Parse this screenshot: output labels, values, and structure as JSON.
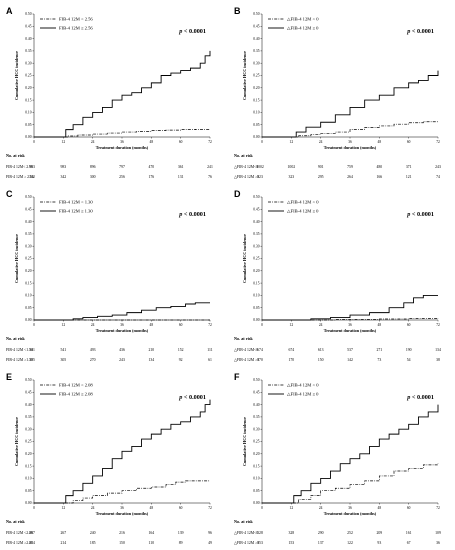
{
  "chart_data": [
    {
      "panel": "A",
      "type": "line",
      "ylabel": "Cumulative HCC incidence",
      "xlabel": "Treatment duration (months)",
      "ylim": [
        0,
        0.5
      ],
      "xlim": [
        0,
        72
      ],
      "x_ticks": [
        "0",
        "12",
        "24",
        "36",
        "48",
        "60",
        "72"
      ],
      "y_ticks": [
        "0.00",
        "0.05",
        "0.10",
        "0.15",
        "0.20",
        "0.25",
        "0.30",
        "0.35",
        "0.40",
        "0.45",
        "0.50"
      ],
      "grid": false,
      "legend_position": "top-left",
      "p_value_label": "p < 0.0001",
      "series": [
        {
          "name": "FIB-4 12M < 2.56",
          "style": "dashdot",
          "x": [
            0,
            12,
            14,
            18,
            24,
            30,
            36,
            42,
            48,
            54,
            60,
            66,
            72
          ],
          "y": [
            0,
            0,
            0.004,
            0.008,
            0.012,
            0.016,
            0.02,
            0.023,
            0.026,
            0.028,
            0.03,
            0.031,
            0.031
          ]
        },
        {
          "name": "FIB-4 12M ≥ 2.56",
          "style": "solid",
          "x": [
            0,
            11,
            13,
            16,
            20,
            24,
            28,
            32,
            36,
            40,
            44,
            48,
            52,
            56,
            60,
            64,
            68,
            70,
            72
          ],
          "y": [
            0,
            0,
            0.03,
            0.05,
            0.08,
            0.1,
            0.12,
            0.15,
            0.17,
            0.18,
            0.2,
            0.22,
            0.25,
            0.26,
            0.27,
            0.28,
            0.3,
            0.33,
            0.35
          ]
        }
      ],
      "risk_table": {
        "title": "No. at risk",
        "rows": [
          {
            "label": "FIB-4 12M< 2.56",
            "values": [
              "983",
              "983",
              "896",
              "797",
              "470",
              "361",
              "241"
            ]
          },
          {
            "label": "FIB-4 12M ≥ 2.56",
            "values": [
              "342",
              "342",
              "300",
              "256",
              "176",
              "131",
              "76"
            ]
          }
        ]
      }
    },
    {
      "panel": "B",
      "type": "line",
      "ylabel": "Cumulative HCC incidence",
      "xlabel": "Treatment duration (months)",
      "ylim": [
        0,
        0.5
      ],
      "xlim": [
        0,
        72
      ],
      "x_ticks": [
        "0",
        "12",
        "24",
        "36",
        "48",
        "60",
        "72"
      ],
      "y_ticks": [
        "0.00",
        "0.05",
        "0.10",
        "0.15",
        "0.20",
        "0.25",
        "0.30",
        "0.35",
        "0.40",
        "0.45",
        "0.50"
      ],
      "grid": false,
      "legend_position": "top-left",
      "p_value_label": "p < 0.0001",
      "series": [
        {
          "name": "△FIB-4 12M < 0",
          "style": "dashdot",
          "x": [
            0,
            12,
            15,
            20,
            24,
            30,
            36,
            42,
            48,
            54,
            60,
            66,
            72
          ],
          "y": [
            0,
            0,
            0.005,
            0.01,
            0.015,
            0.02,
            0.03,
            0.038,
            0.045,
            0.052,
            0.058,
            0.062,
            0.065
          ]
        },
        {
          "name": "△FIB-4 12M ≥ 0",
          "style": "solid",
          "x": [
            0,
            11,
            14,
            18,
            24,
            30,
            36,
            42,
            48,
            54,
            60,
            64,
            68,
            72
          ],
          "y": [
            0,
            0,
            0.02,
            0.04,
            0.06,
            0.09,
            0.12,
            0.15,
            0.17,
            0.2,
            0.22,
            0.23,
            0.25,
            0.27
          ]
        }
      ],
      "risk_table": {
        "title": "No. at risk",
        "rows": [
          {
            "label": "△FIB-4 12M<0",
            "values": [
              "1002",
              "1002",
              "901",
              "759",
              "480",
              "371",
              "243"
            ]
          },
          {
            "label": "△FIB-4 12M ≥0",
            "values": [
              "323",
              "323",
              "295",
              "264",
              "166",
              "121",
              "74"
            ]
          }
        ]
      }
    },
    {
      "panel": "C",
      "type": "line",
      "ylabel": "Cumulative HCC incidence",
      "xlabel": "Treatment duration (months)",
      "ylim": [
        0,
        0.5
      ],
      "xlim": [
        0,
        72
      ],
      "x_ticks": [
        "0",
        "12",
        "24",
        "36",
        "48",
        "60",
        "72"
      ],
      "y_ticks": [
        "0.00",
        "0.05",
        "0.10",
        "0.15",
        "0.20",
        "0.25",
        "0.30",
        "0.35",
        "0.40",
        "0.45",
        "0.50"
      ],
      "grid": false,
      "legend_position": "top-left",
      "p_value_label": "p < 0.0001",
      "series": [
        {
          "name": "FIB-4 12M < 1.30",
          "style": "dashdot",
          "x": [
            0,
            72
          ],
          "y": [
            0,
            0
          ]
        },
        {
          "name": "FIB-4 12M ≥ 1.30",
          "style": "solid",
          "x": [
            0,
            12,
            16,
            20,
            26,
            32,
            38,
            44,
            50,
            56,
            62,
            66,
            72
          ],
          "y": [
            0,
            0,
            0.005,
            0.01,
            0.015,
            0.02,
            0.03,
            0.04,
            0.05,
            0.055,
            0.065,
            0.07,
            0.07
          ]
        }
      ],
      "risk_table": {
        "title": "No. at risk",
        "rows": [
          {
            "label": "FIB-4 12M <1.30",
            "values": [
              "541",
              "541",
              "493",
              "436",
              "210",
              "152",
              "111"
            ]
          },
          {
            "label": "FIB-4 12M ≥1.30",
            "values": [
              "305",
              "305",
              "270",
              "243",
              "134",
              "92",
              "61"
            ]
          }
        ]
      }
    },
    {
      "panel": "D",
      "type": "line",
      "ylabel": "Cumulative HCC incidence",
      "xlabel": "Treatment duration (months)",
      "ylim": [
        0,
        0.5
      ],
      "xlim": [
        0,
        72
      ],
      "x_ticks": [
        "0",
        "12",
        "24",
        "36",
        "48",
        "60",
        "72"
      ],
      "y_ticks": [
        "0.00",
        "0.05",
        "0.10",
        "0.15",
        "0.20",
        "0.25",
        "0.30",
        "0.35",
        "0.40",
        "0.45",
        "0.50"
      ],
      "grid": false,
      "legend_position": "top-left",
      "p_value_label": "p < 0.0001",
      "series": [
        {
          "name": "△FIB-4 12M < 0",
          "style": "dashdot",
          "x": [
            0,
            12,
            30,
            48,
            60,
            72
          ],
          "y": [
            0,
            0,
            0.002,
            0.004,
            0.006,
            0.008
          ]
        },
        {
          "name": "△FIB-4 12M ≥ 0",
          "style": "solid",
          "x": [
            0,
            12,
            20,
            28,
            36,
            44,
            52,
            58,
            62,
            66,
            72
          ],
          "y": [
            0,
            0,
            0.005,
            0.01,
            0.02,
            0.03,
            0.05,
            0.07,
            0.09,
            0.1,
            0.1
          ]
        }
      ],
      "risk_table": {
        "title": "No. at risk",
        "rows": [
          {
            "label": "△FIB-4 12M<0",
            "values": [
              "674",
              "674",
              "613",
              "537",
              "271",
              "190",
              "134"
            ]
          },
          {
            "label": "△FIB-4 12M ≥0",
            "values": [
              "170",
              "170",
              "150",
              "142",
              "73",
              "54",
              "38"
            ]
          }
        ]
      }
    },
    {
      "panel": "E",
      "type": "line",
      "ylabel": "Cumulative HCC incidence",
      "xlabel": "Treatment duration (months)",
      "ylim": [
        0,
        0.5
      ],
      "xlim": [
        0,
        72
      ],
      "x_ticks": [
        "0",
        "12",
        "24",
        "36",
        "48",
        "60",
        "72"
      ],
      "y_ticks": [
        "0.00",
        "0.05",
        "0.10",
        "0.15",
        "0.20",
        "0.25",
        "0.30",
        "0.35",
        "0.40",
        "0.45",
        "0.50"
      ],
      "grid": false,
      "legend_position": "top-left",
      "p_value_label": "p < 0.0001",
      "series": [
        {
          "name": "FIB-4 12M < 2.08",
          "style": "dashdot",
          "x": [
            0,
            12,
            16,
            20,
            24,
            30,
            36,
            42,
            48,
            54,
            58,
            62,
            66,
            72
          ],
          "y": [
            0,
            0,
            0.01,
            0.02,
            0.03,
            0.04,
            0.05,
            0.06,
            0.065,
            0.075,
            0.085,
            0.09,
            0.09,
            0.09
          ]
        },
        {
          "name": "FIB-4 12M ≥ 2.08",
          "style": "solid",
          "x": [
            0,
            11,
            13,
            16,
            20,
            24,
            28,
            32,
            36,
            40,
            44,
            48,
            52,
            56,
            60,
            64,
            68,
            70,
            72
          ],
          "y": [
            0,
            0,
            0.03,
            0.05,
            0.08,
            0.11,
            0.14,
            0.18,
            0.21,
            0.23,
            0.26,
            0.28,
            0.3,
            0.32,
            0.33,
            0.35,
            0.37,
            0.4,
            0.42
          ]
        }
      ],
      "risk_table": {
        "title": "No. at risk",
        "rows": [
          {
            "label": "FIB-4 12M <2.08",
            "values": [
              "267",
              "267",
              "240",
              "216",
              "164",
              "139",
              "96"
            ]
          },
          {
            "label": "FIB-4 12M ≥2.08",
            "values": [
              "214",
              "214",
              "185",
              "150",
              "110",
              "89",
              "49"
            ]
          }
        ]
      }
    },
    {
      "panel": "F",
      "type": "line",
      "ylabel": "Cumulative HCC incidence",
      "xlabel": "Treatment duration (months)",
      "ylim": [
        0,
        0.5
      ],
      "xlim": [
        0,
        72
      ],
      "x_ticks": [
        "0",
        "12",
        "24",
        "36",
        "48",
        "60",
        "72"
      ],
      "y_ticks": [
        "0.00",
        "0.05",
        "0.10",
        "0.15",
        "0.20",
        "0.25",
        "0.30",
        "0.35",
        "0.40",
        "0.45",
        "0.50"
      ],
      "grid": false,
      "legend_position": "top-left",
      "p_value_label": "p < 0.0001",
      "series": [
        {
          "name": "△FIB-4 12M < 0",
          "style": "dashdot",
          "x": [
            0,
            12,
            15,
            20,
            24,
            30,
            36,
            42,
            48,
            54,
            60,
            66,
            72
          ],
          "y": [
            0,
            0,
            0.015,
            0.03,
            0.05,
            0.06,
            0.075,
            0.09,
            0.11,
            0.13,
            0.14,
            0.155,
            0.16
          ]
        },
        {
          "name": "△FIB-4 12M ≥ 0",
          "style": "solid",
          "x": [
            0,
            11,
            13,
            16,
            20,
            24,
            28,
            32,
            36,
            40,
            44,
            48,
            52,
            56,
            60,
            64,
            68,
            72
          ],
          "y": [
            0,
            0,
            0.03,
            0.05,
            0.08,
            0.1,
            0.13,
            0.16,
            0.18,
            0.2,
            0.23,
            0.26,
            0.28,
            0.3,
            0.32,
            0.35,
            0.37,
            0.4
          ]
        }
      ],
      "risk_table": {
        "title": "No. at risk",
        "rows": [
          {
            "label": "△FIB-4 12M<0",
            "values": [
              "328",
              "328",
              "290",
              "252",
              "209",
              "161",
              "109"
            ]
          },
          {
            "label": "△FIB-4 12M ≥0",
            "values": [
              "153",
              "153",
              "137",
              "122",
              "93",
              "67",
              "36"
            ]
          }
        ]
      }
    }
  ]
}
